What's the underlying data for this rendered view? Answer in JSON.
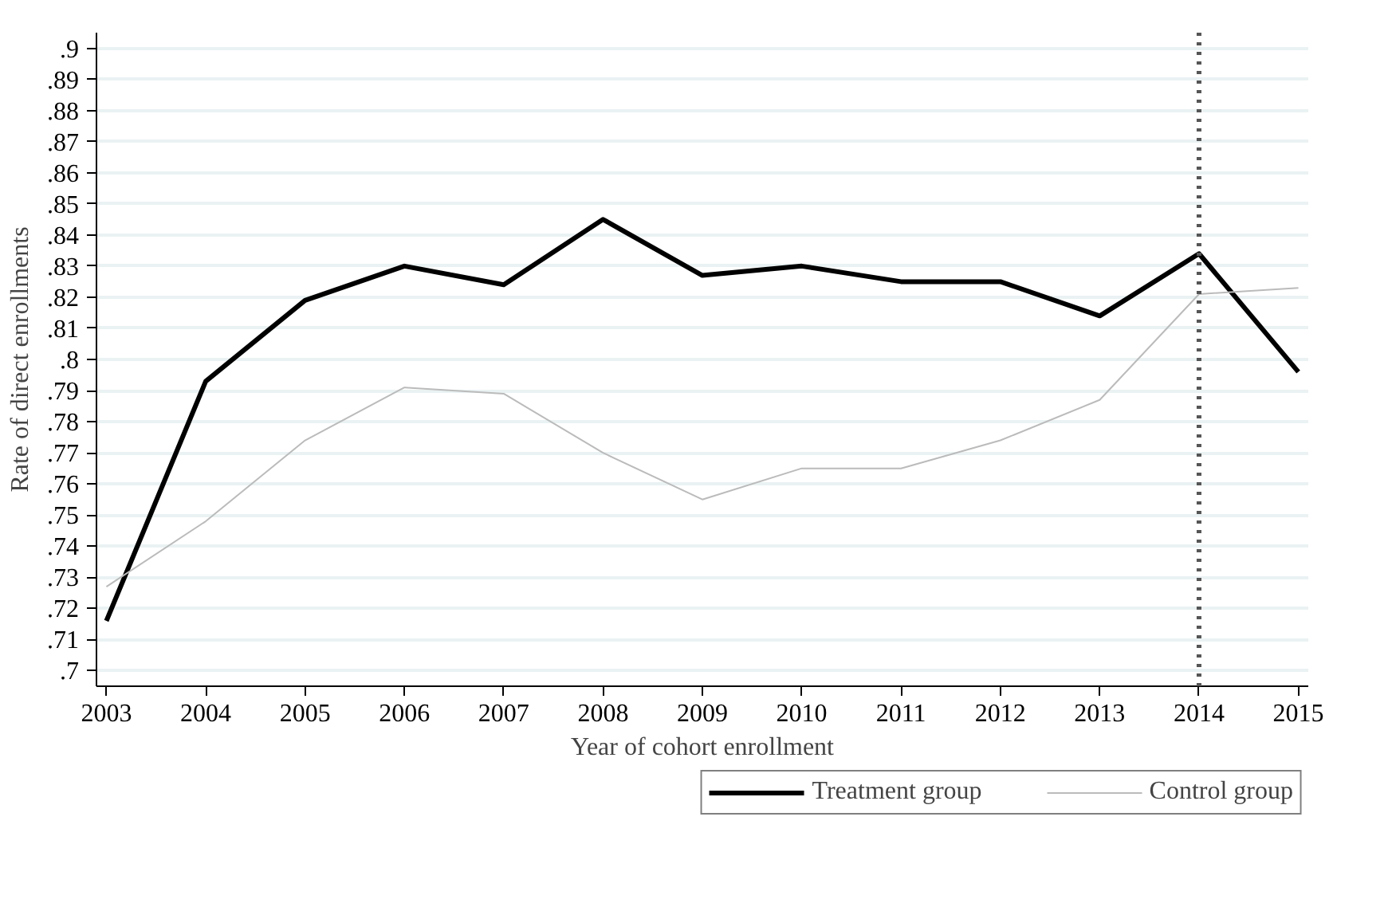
{
  "chart_data": {
    "type": "line",
    "xlabel": "Year of cohort enrollment",
    "ylabel": "Rate of direct enrollments",
    "x": [
      2003,
      2004,
      2005,
      2006,
      2007,
      2008,
      2009,
      2010,
      2011,
      2012,
      2013,
      2014,
      2015
    ],
    "series": [
      {
        "name": "Treatment group",
        "color": "#000000",
        "values": [
          0.716,
          0.793,
          0.819,
          0.83,
          0.824,
          0.845,
          0.827,
          0.83,
          0.825,
          0.825,
          0.814,
          0.834,
          0.796
        ]
      },
      {
        "name": "Control group",
        "color": "#bbbbbb",
        "values": [
          0.727,
          0.748,
          0.774,
          0.791,
          0.789,
          0.77,
          0.755,
          0.765,
          0.765,
          0.774,
          0.787,
          0.821,
          0.823
        ]
      }
    ],
    "xlim": [
      2002.9,
      2015.1
    ],
    "xticks": [
      2003,
      2004,
      2005,
      2006,
      2007,
      2008,
      2009,
      2010,
      2011,
      2012,
      2013,
      2014,
      2015
    ],
    "ylim": [
      0.695,
      0.905
    ],
    "yticks": [
      {
        "value": 0.7,
        "label": ".7"
      },
      {
        "value": 0.71,
        "label": ".71"
      },
      {
        "value": 0.72,
        "label": ".72"
      },
      {
        "value": 0.73,
        "label": ".73"
      },
      {
        "value": 0.74,
        "label": ".74"
      },
      {
        "value": 0.75,
        "label": ".75"
      },
      {
        "value": 0.76,
        "label": ".76"
      },
      {
        "value": 0.77,
        "label": ".77"
      },
      {
        "value": 0.78,
        "label": ".78"
      },
      {
        "value": 0.79,
        "label": ".79"
      },
      {
        "value": 0.8,
        "label": ".8"
      },
      {
        "value": 0.81,
        "label": ".81"
      },
      {
        "value": 0.82,
        "label": ".82"
      },
      {
        "value": 0.83,
        "label": ".83"
      },
      {
        "value": 0.84,
        "label": ".84"
      },
      {
        "value": 0.85,
        "label": ".85"
      },
      {
        "value": 0.86,
        "label": ".86"
      },
      {
        "value": 0.87,
        "label": ".87"
      },
      {
        "value": 0.88,
        "label": ".88"
      },
      {
        "value": 0.89,
        "label": ".89"
      },
      {
        "value": 0.9,
        "label": ".9"
      }
    ],
    "ref_lines": [
      {
        "axis": "x",
        "value": 2014,
        "color": "#555555",
        "line_style": "dotted"
      }
    ],
    "grid": "y",
    "legend": "bottom",
    "line_style": "solid",
    "marker": "none"
  }
}
